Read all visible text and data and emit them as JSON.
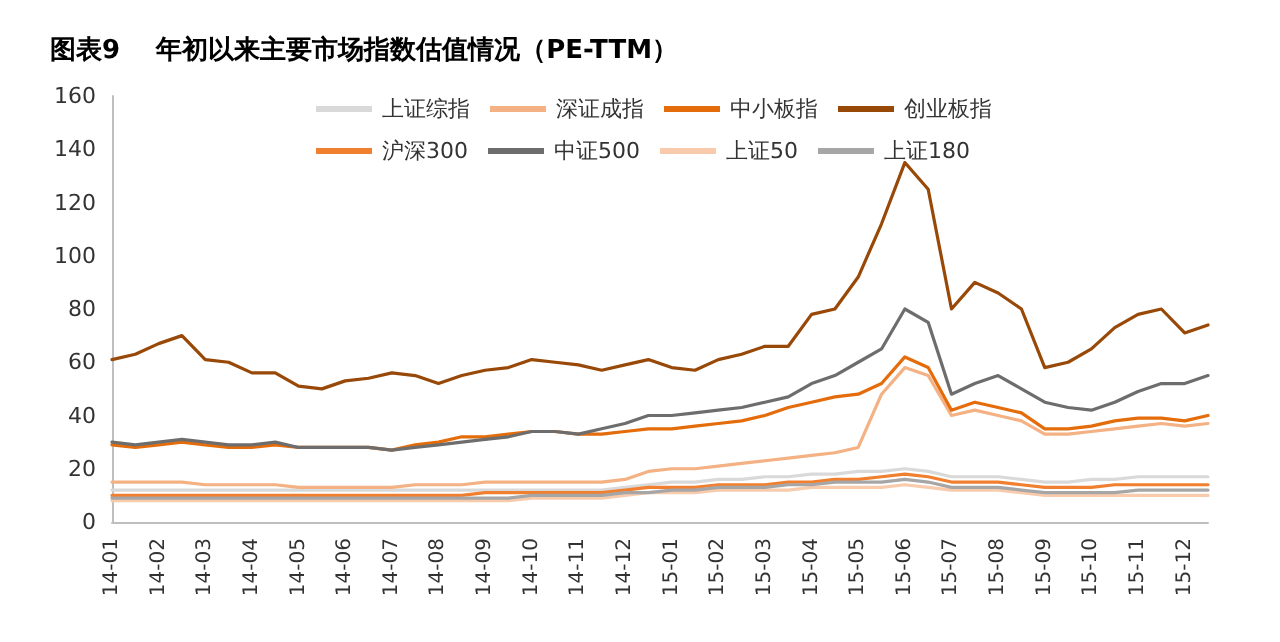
{
  "chart_data": {
    "type": "line",
    "title": "图表9    年初以来主要市场指数估值情况（PE-TTM）",
    "categories": [
      "14-01",
      null,
      "14-02",
      null,
      "14-03",
      null,
      "14-04",
      null,
      "14-05",
      null,
      "14-06",
      null,
      "14-07",
      null,
      "14-08",
      null,
      "14-09",
      null,
      "14-10",
      null,
      "14-11",
      null,
      "14-12",
      null,
      "15-01",
      null,
      "15-02",
      null,
      "15-03",
      null,
      "15-04",
      null,
      "15-05",
      null,
      "15-06",
      null,
      "15-07",
      null,
      "15-08",
      null,
      "15-09",
      null,
      "15-10",
      null,
      "15-11",
      null,
      "15-12",
      null
    ],
    "ylim": [
      0,
      160
    ],
    "yticks": [
      0,
      20,
      40,
      60,
      80,
      100,
      120,
      140,
      160
    ],
    "grid": false,
    "legend": "top",
    "marker": "none",
    "line_style": "solid",
    "series": [
      {
        "name": "上证综指",
        "color": "#d9d9d9",
        "values": [
          12,
          12,
          12,
          12,
          12,
          12,
          12,
          12,
          12,
          12,
          12,
          12,
          12,
          12,
          12,
          12,
          12,
          12,
          12,
          12,
          12,
          12,
          13,
          14,
          15,
          15,
          16,
          16,
          17,
          17,
          18,
          18,
          19,
          19,
          20,
          19,
          17,
          17,
          17,
          16,
          15,
          15,
          16,
          16,
          17,
          17,
          17,
          17
        ]
      },
      {
        "name": "深证成指",
        "color": "#f4b183",
        "values": [
          15,
          15,
          15,
          15,
          14,
          14,
          14,
          14,
          13,
          13,
          13,
          13,
          13,
          14,
          14,
          14,
          15,
          15,
          15,
          15,
          15,
          15,
          16,
          19,
          20,
          20,
          21,
          22,
          23,
          24,
          25,
          26,
          28,
          48,
          58,
          55,
          40,
          42,
          40,
          38,
          33,
          33,
          34,
          35,
          36,
          37,
          36,
          37
        ]
      },
      {
        "name": "中小板指",
        "color": "#e46c0a",
        "values": [
          29,
          28,
          29,
          30,
          29,
          28,
          28,
          29,
          28,
          28,
          28,
          28,
          27,
          29,
          30,
          32,
          32,
          33,
          34,
          34,
          33,
          33,
          34,
          35,
          35,
          36,
          37,
          38,
          40,
          43,
          45,
          47,
          48,
          52,
          62,
          58,
          42,
          45,
          43,
          41,
          35,
          35,
          36,
          38,
          39,
          39,
          38,
          40
        ]
      },
      {
        "name": "创业板指",
        "color": "#984807",
        "values": [
          61,
          63,
          67,
          70,
          61,
          60,
          56,
          56,
          51,
          50,
          53,
          54,
          56,
          55,
          52,
          55,
          57,
          58,
          61,
          60,
          59,
          57,
          59,
          61,
          58,
          57,
          61,
          63,
          66,
          66,
          78,
          80,
          92,
          112,
          135,
          125,
          80,
          90,
          86,
          80,
          58,
          60,
          65,
          73,
          78,
          80,
          71,
          74
        ]
      },
      {
        "name": "沪深300",
        "color": "#f08030",
        "values": [
          10,
          10,
          10,
          10,
          10,
          10,
          10,
          10,
          10,
          10,
          10,
          10,
          10,
          10,
          10,
          10,
          11,
          11,
          11,
          11,
          11,
          11,
          12,
          13,
          13,
          13,
          14,
          14,
          14,
          15,
          15,
          16,
          16,
          17,
          18,
          17,
          15,
          15,
          15,
          14,
          13,
          13,
          13,
          14,
          14,
          14,
          14,
          14
        ]
      },
      {
        "name": "中证500",
        "color": "#6d6d6d",
        "values": [
          30,
          29,
          30,
          31,
          30,
          29,
          29,
          30,
          28,
          28,
          28,
          28,
          27,
          28,
          29,
          30,
          31,
          32,
          34,
          34,
          33,
          35,
          37,
          40,
          40,
          41,
          42,
          43,
          45,
          47,
          52,
          55,
          60,
          65,
          80,
          75,
          48,
          52,
          55,
          50,
          45,
          43,
          42,
          45,
          49,
          52,
          52,
          55
        ]
      },
      {
        "name": "上证50",
        "color": "#f8cbad",
        "values": [
          8,
          8,
          8,
          8,
          8,
          8,
          8,
          8,
          8,
          8,
          8,
          8,
          8,
          8,
          8,
          8,
          8,
          8,
          9,
          9,
          9,
          9,
          10,
          11,
          11,
          11,
          12,
          12,
          12,
          12,
          13,
          13,
          13,
          13,
          14,
          13,
          12,
          12,
          12,
          11,
          10,
          10,
          10,
          10,
          10,
          10,
          10,
          10
        ]
      },
      {
        "name": "上证180",
        "color": "#a6a6a6",
        "values": [
          9,
          9,
          9,
          9,
          9,
          9,
          9,
          9,
          9,
          9,
          9,
          9,
          9,
          9,
          9,
          9,
          9,
          9,
          10,
          10,
          10,
          10,
          11,
          11,
          12,
          12,
          13,
          13,
          13,
          14,
          14,
          15,
          15,
          15,
          16,
          15,
          13,
          13,
          13,
          12,
          11,
          11,
          11,
          11,
          12,
          12,
          12,
          12
        ]
      }
    ]
  }
}
